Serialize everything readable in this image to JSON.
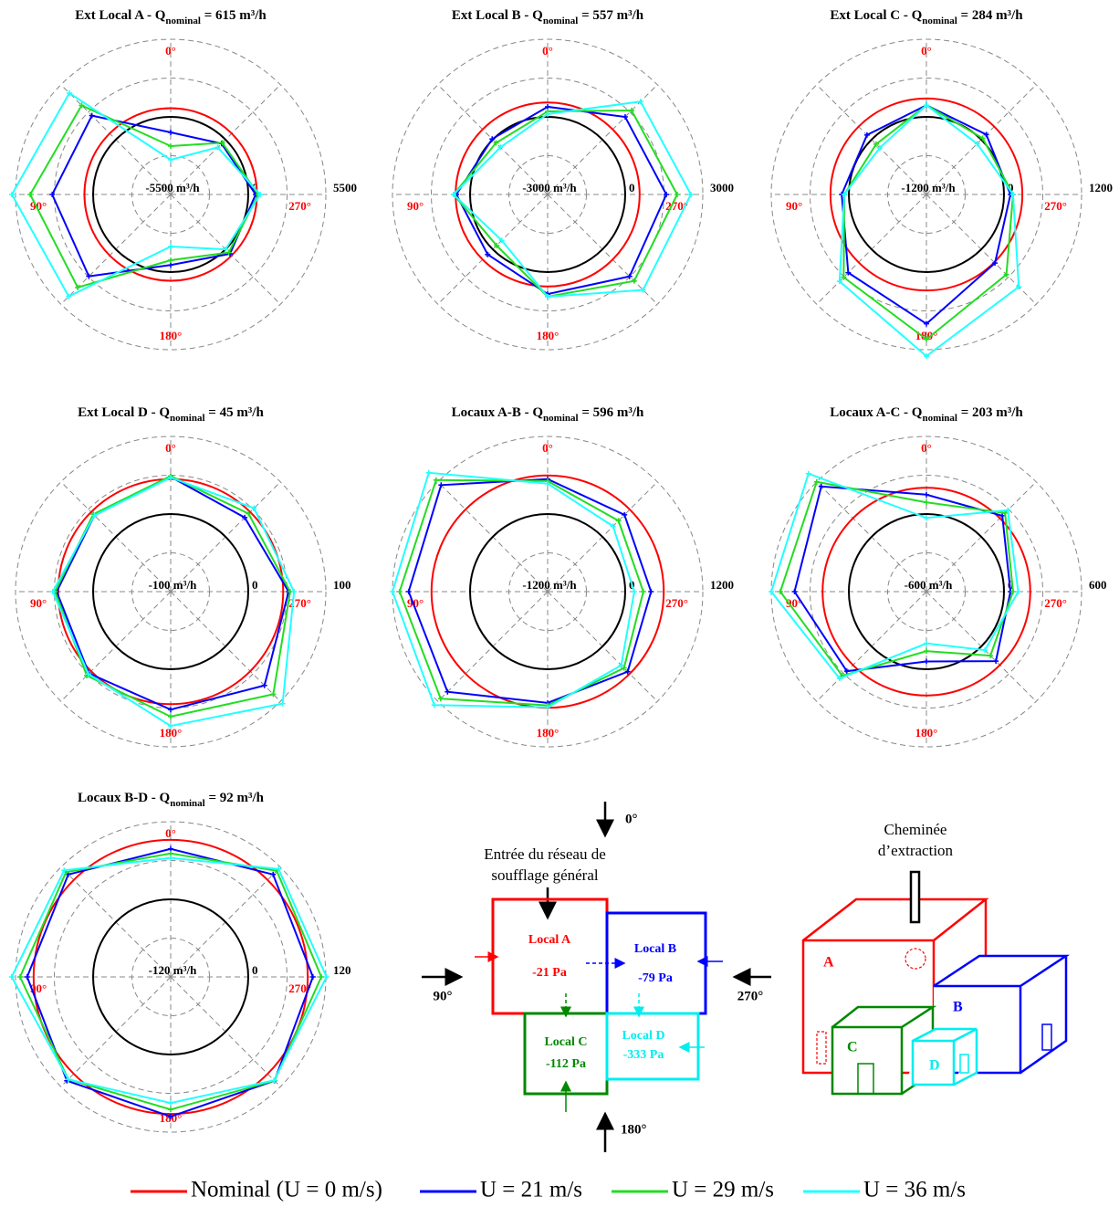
{
  "chart_data": [
    {
      "type": "radar",
      "title": [
        "Ext Local A - Q",
        "nominal",
        " = 615 m³/h"
      ],
      "theta": [
        0,
        45,
        90,
        135,
        180,
        225,
        270,
        315
      ],
      "theta_ticks": [
        {
          "value": 0,
          "label": "0°"
        },
        {
          "value": 90,
          "label": "90°"
        },
        {
          "value": 180,
          "label": "180°"
        },
        {
          "value": 270,
          "label": "270°"
        }
      ],
      "rlim": [
        -5500,
        5500
      ],
      "rticks": [
        {
          "value": -5500,
          "label": "-5500 m³/h"
        },
        0,
        5500
      ],
      "rgrid": [
        -2750,
        2750
      ],
      "series": [
        {
          "values": [
            615,
            615,
            615,
            615,
            615,
            615,
            615,
            615
          ]
        },
        {
          "values": [
            -1100,
            2400,
            2900,
            2700,
            -500,
            450,
            520,
            -400
          ]
        },
        {
          "values": [
            -2070,
            3430,
            4460,
            3820,
            -840,
            320,
            710,
            -320
          ]
        },
        {
          "values": [
            -3040,
            4660,
            5760,
            4720,
            -1810,
            0,
            840,
            -780
          ]
        }
      ]
    },
    {
      "type": "radar",
      "title": [
        "Ext Local B - Q",
        "nominal",
        " = 557 m³/h"
      ],
      "theta": [
        0,
        45,
        90,
        135,
        180,
        225,
        270,
        315
      ],
      "theta_ticks": [
        {
          "value": 0,
          "label": "0°"
        },
        {
          "value": 90,
          "label": "90°"
        },
        {
          "value": 180,
          "label": "180°"
        },
        {
          "value": 270,
          "label": "270°"
        }
      ],
      "rlim": [
        -3000,
        3000
      ],
      "rticks": [
        {
          "value": -3000,
          "label": "-3000 m³/h"
        },
        0,
        3000
      ],
      "rgrid": [
        -1500,
        1500
      ],
      "series": [
        {
          "values": [
            557,
            557,
            557,
            557,
            557,
            557,
            557,
            557
          ]
        },
        {
          "values": [
            390,
            35,
            530,
            280,
            850,
            1480,
            1590,
            1240
          ]
        },
        {
          "values": [
            210,
            -180,
            640,
            -210,
            950,
            1730,
            2010,
            1590
          ]
        },
        {
          "values": [
            110,
            -420,
            640,
            -490,
            950,
            2220,
            2540,
            2080
          ]
        }
      ]
    },
    {
      "type": "radar",
      "title": [
        "Ext Local C - Q",
        "nominal",
        " = 284 m³/h"
      ],
      "theta": [
        0,
        45,
        90,
        135,
        180,
        225,
        270,
        315
      ],
      "theta_ticks": [
        {
          "value": 0,
          "label": "0°"
        },
        {
          "value": 90,
          "label": "90°"
        },
        {
          "value": 180,
          "label": "180°"
        },
        {
          "value": 270,
          "label": "270°"
        }
      ],
      "rlim": [
        -1200,
        1200
      ],
      "rticks": [
        {
          "value": -1200,
          "label": "-1200 m³/h"
        },
        0,
        1200
      ],
      "rgrid": [
        -600,
        600
      ],
      "series": [
        {
          "values": [
            284,
            284,
            284,
            284,
            284,
            284,
            284,
            284
          ]
        },
        {
          "values": [
            180,
            100,
            110,
            510,
            800,
            300,
            100,
            110
          ]
        },
        {
          "values": [
            180,
            -100,
            70,
            610,
            1040,
            550,
            140,
            30
          ]
        },
        {
          "values": [
            180,
            -180,
            70,
            700,
            1300,
            820,
            140,
            -90
          ]
        }
      ]
    },
    {
      "type": "radar",
      "title": [
        "Ext Local D - Q",
        "nominal",
        " = 45 m³/h"
      ],
      "theta": [
        0,
        45,
        90,
        135,
        180,
        225,
        270,
        315
      ],
      "theta_ticks": [
        {
          "value": 0,
          "label": "0°"
        },
        {
          "value": 90,
          "label": "90°"
        },
        {
          "value": 180,
          "label": "180°"
        },
        {
          "value": 270,
          "label": "270°"
        }
      ],
      "rlim": [
        -100,
        100
      ],
      "rticks": [
        {
          "value": -100,
          "label": "-100 m³/h"
        },
        0,
        100
      ],
      "rgrid": [
        -50,
        50
      ],
      "series": [
        {
          "values": [
            45,
            45,
            45,
            45,
            45,
            45,
            45,
            45
          ]
        },
        {
          "values": [
            48,
            39,
            47,
            49,
            52,
            71,
            52,
            35
          ]
        },
        {
          "values": [
            49,
            41,
            49,
            53,
            61,
            87,
            54,
            42
          ]
        },
        {
          "values": [
            47,
            39,
            52,
            50,
            73,
            104,
            59,
            52
          ]
        }
      ]
    },
    {
      "type": "radar",
      "title": [
        "Locaux A-B - Q",
        "nominal",
        " = 596 m³/h"
      ],
      "theta": [
        0,
        45,
        90,
        135,
        180,
        225,
        270,
        315
      ],
      "theta_ticks": [
        {
          "value": 0,
          "label": "0°"
        },
        {
          "value": 90,
          "label": "90°"
        },
        {
          "value": 180,
          "label": "180°"
        },
        {
          "value": 270,
          "label": "270°"
        }
      ],
      "rlim": [
        -1200,
        1200
      ],
      "rticks": [
        {
          "value": -1200,
          "label": "-1200 m³/h"
        },
        0,
        1200
      ],
      "rgrid": [
        -600,
        600
      ],
      "series": [
        {
          "values": [
            596,
            596,
            596,
            596,
            596,
            596,
            596,
            596
          ]
        },
        {
          "values": [
            540,
            1130,
            950,
            990,
            520,
            550,
            400,
            480
          ]
        },
        {
          "values": [
            510,
            1240,
            1090,
            1140,
            560,
            470,
            280,
            350
          ]
        },
        {
          "values": [
            470,
            1400,
            1200,
            1280,
            590,
            410,
            140,
            230
          ]
        }
      ]
    },
    {
      "type": "radar",
      "title": [
        "Locaux A-C - Q",
        "nominal",
        " = 203 m³/h"
      ],
      "theta": [
        0,
        45,
        90,
        135,
        180,
        225,
        270,
        315
      ],
      "theta_ticks": [
        {
          "value": 0,
          "label": "0°"
        },
        {
          "value": 90,
          "label": "90°"
        },
        {
          "value": 180,
          "label": "180°"
        },
        {
          "value": 270,
          "label": "270°"
        }
      ],
      "rlim": [
        -600,
        600
      ],
      "rticks": [
        {
          "value": -600,
          "label": "-600 m³/h"
        },
        0,
        600
      ],
      "rgrid": [
        -300,
        300
      ],
      "series": [
        {
          "values": [
            203,
            203,
            203,
            203,
            203,
            203,
            203,
            203
          ]
        },
        {
          "values": [
            150,
            550,
            420,
            270,
            -60,
            160,
            50,
            230
          ]
        },
        {
          "values": [
            90,
            600,
            530,
            320,
            -140,
            100,
            70,
            260
          ]
        },
        {
          "values": [
            -30,
            690,
            600,
            350,
            -200,
            40,
            110,
            290
          ]
        }
      ]
    },
    {
      "type": "radar",
      "title": [
        "Locaux B-D - Q",
        "nominal",
        " = 92 m³/h"
      ],
      "theta": [
        0,
        45,
        90,
        135,
        180,
        225,
        270,
        315
      ],
      "theta_ticks": [
        {
          "value": 0,
          "label": "0°"
        },
        {
          "value": 90,
          "label": "90°"
        },
        {
          "value": 180,
          "label": "180°"
        },
        {
          "value": 270,
          "label": "270°"
        }
      ],
      "rlim": [
        -120,
        120
      ],
      "rticks": [
        {
          "value": -120,
          "label": "-120 m³/h"
        },
        0,
        120
      ],
      "rgrid": [
        -60,
        60
      ],
      "series": [
        {
          "values": [
            92,
            92,
            92,
            92,
            92,
            92,
            92,
            92
          ]
        },
        {
          "values": [
            78,
            104,
            102,
            107,
            96,
            107,
            100,
            104
          ]
        },
        {
          "values": [
            71,
            109,
            113,
            104,
            85,
            107,
            113,
            112
          ]
        },
        {
          "values": [
            64,
            113,
            126,
            104,
            75,
            106,
            121,
            116
          ]
        }
      ]
    }
  ],
  "legend": [
    {
      "name": "Nominal (U = 0 m/s)",
      "color": "#ff0000"
    },
    {
      "name": "U = 21 m/s",
      "color": "#0000ff"
    },
    {
      "name": "U = 29 m/s",
      "color": "#22dd22"
    },
    {
      "name": "U = 36 m/s",
      "color": "#22ffff"
    }
  ],
  "diagram": {
    "directions": [
      "0°",
      "90°",
      "180°",
      "270°"
    ],
    "inlet": [
      "Entrée du réseau de",
      "soufflage général"
    ],
    "rooms": [
      {
        "name": "Local A",
        "pressure": "-21 Pa"
      },
      {
        "name": "Local B",
        "pressure": "-79 Pa"
      },
      {
        "name": "Local C",
        "pressure": "-112 Pa"
      },
      {
        "name": "Local D",
        "pressure": "-333 Pa"
      }
    ],
    "chimney": [
      "Cheminée",
      "d’extraction"
    ],
    "building_labels": [
      "A",
      "B",
      "C",
      "D"
    ]
  }
}
